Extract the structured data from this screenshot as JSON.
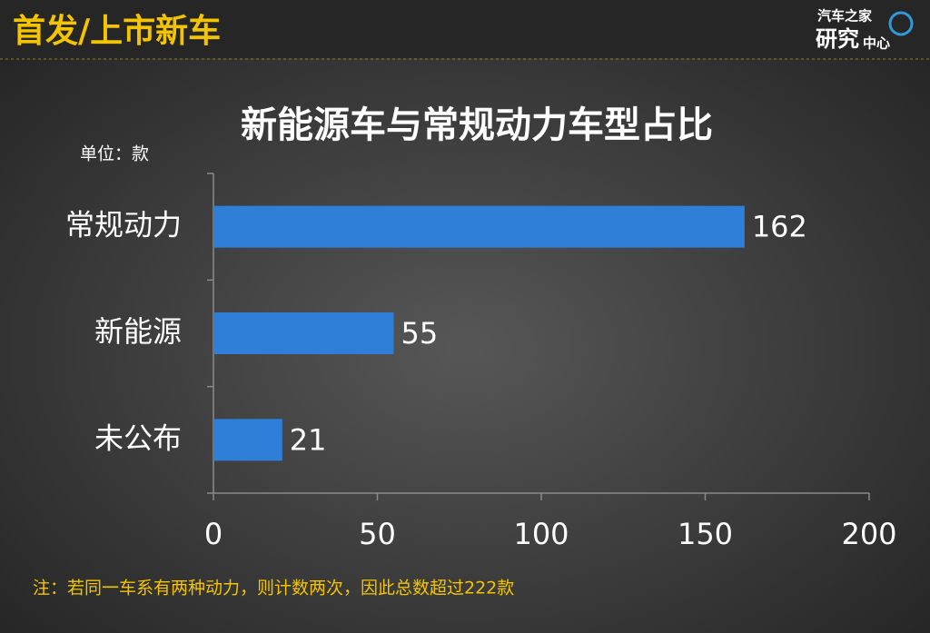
{
  "header": {
    "title": "首发/上市新车",
    "logo_top": "汽车之家",
    "logo_big": "研究",
    "logo_small": "中心"
  },
  "note": "注：若同一车系有两种动力，则计数两次，因此总数超过222款",
  "chart_data": {
    "type": "hbar",
    "title": "新能源车与常规动力车型占比",
    "unit_label": "单位：款",
    "categories": [
      "常规动力",
      "新能源",
      "未公布"
    ],
    "values": [
      162,
      55,
      21
    ],
    "color": "#2f7fd8",
    "xlim": [
      0,
      200
    ],
    "xticks": [
      0,
      50,
      100,
      150,
      200
    ],
    "grid": false
  }
}
